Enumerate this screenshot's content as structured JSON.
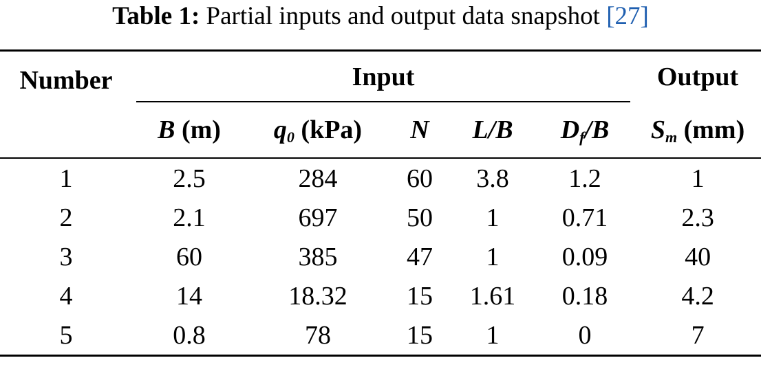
{
  "caption": {
    "label": "Table 1:",
    "text": "Partial inputs and output data snapshot",
    "cite_open": "[",
    "cite": "27",
    "cite_close": "]"
  },
  "table": {
    "group_headers": {
      "number": "Number",
      "input": "Input",
      "output": "Output"
    },
    "columns": [
      {
        "sym": "B",
        "sub": "",
        "unit": "(m)"
      },
      {
        "sym": "q",
        "sub": "0",
        "unit": "(kPa)"
      },
      {
        "sym": "N",
        "sub": "",
        "unit": ""
      },
      {
        "sym": "L/B",
        "sub": "",
        "unit": ""
      },
      {
        "sym": "D",
        "sub": "f",
        "tail": "/B",
        "unit": ""
      },
      {
        "sym": "S",
        "sub": "m",
        "unit": "(mm)"
      }
    ],
    "rows": [
      [
        "1",
        "2.5",
        "284",
        "60",
        "3.8",
        "1.2",
        "1"
      ],
      [
        "2",
        "2.1",
        "697",
        "50",
        "1",
        "0.71",
        "2.3"
      ],
      [
        "3",
        "60",
        "385",
        "47",
        "1",
        "0.09",
        "40"
      ],
      [
        "4",
        "14",
        "18.32",
        "15",
        "1.61",
        "0.18",
        "4.2"
      ],
      [
        "5",
        "0.8",
        "78",
        "15",
        "1",
        "0",
        "7"
      ]
    ]
  }
}
